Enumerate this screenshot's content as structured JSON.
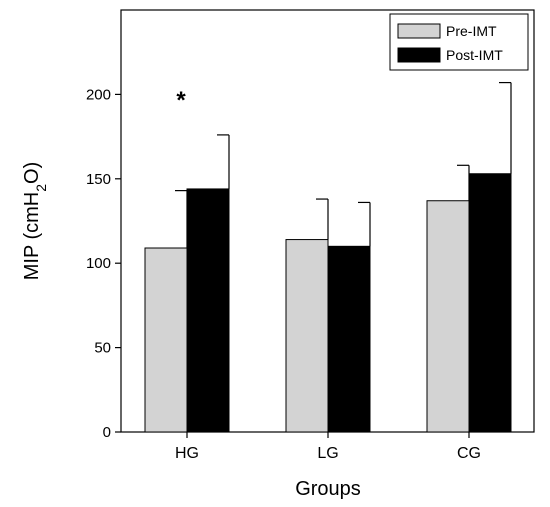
{
  "chart_data": {
    "type": "bar",
    "title": "",
    "xlabel": "Groups",
    "ylabel": {
      "prefix": "MIP (cmH",
      "subscript": "2",
      "suffix": "O)"
    },
    "categories": [
      "HG",
      "LG",
      "CG"
    ],
    "series": [
      {
        "name": "Pre-IMT",
        "color": "#d3d3d3",
        "values": [
          109,
          114,
          137
        ],
        "error": [
          34,
          24,
          21
        ]
      },
      {
        "name": "Post-IMT",
        "color": "#000000",
        "values": [
          144,
          110,
          153
        ],
        "error": [
          32,
          26,
          54
        ]
      }
    ],
    "ylim": [
      0,
      250
    ],
    "yticks": [
      0,
      50,
      100,
      150,
      200
    ],
    "annotations": [
      {
        "category": "HG",
        "text": "*"
      }
    ],
    "legend_position": "top-right",
    "grid": false
  }
}
